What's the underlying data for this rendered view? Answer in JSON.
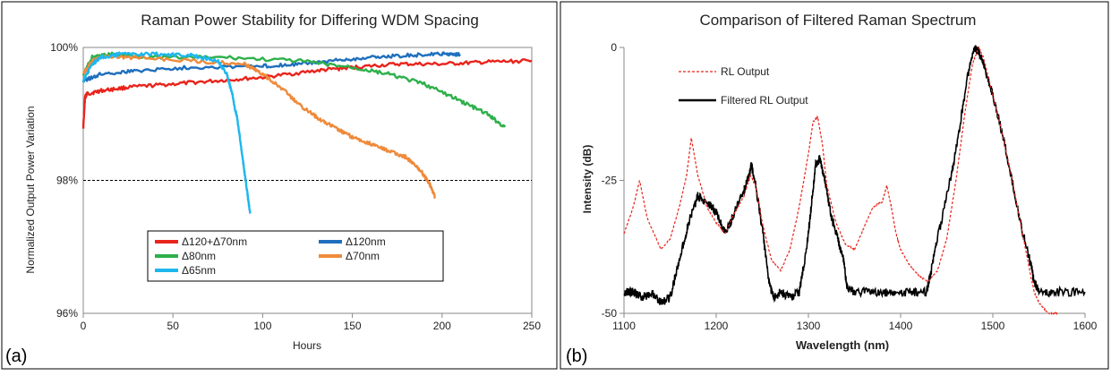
{
  "chart_data": [
    {
      "panel_label": "(a)",
      "type": "line",
      "title": "Raman Power Stability for Differing WDM Spacing",
      "xlabel": "Hours",
      "ylabel": "Normalized Output Power Variation",
      "xlim": [
        0,
        250
      ],
      "ylim": [
        96,
        100
      ],
      "x_ticks": [
        0,
        50,
        100,
        150,
        200,
        250
      ],
      "y_ticks": [
        96,
        98,
        100
      ],
      "y_tick_labels": [
        "96%",
        "98%",
        "100%"
      ],
      "threshold": 98,
      "grid": false,
      "legend_position": "lower-center",
      "series": [
        {
          "name": "Δ120+Δ70nm",
          "color": "#e8241c",
          "x": [
            0,
            1,
            2,
            10,
            25,
            50,
            75,
            100,
            130,
            150,
            175,
            200,
            225,
            250
          ],
          "y": [
            98.8,
            99.25,
            99.3,
            99.35,
            99.4,
            99.45,
            99.5,
            99.55,
            99.65,
            99.7,
            99.75,
            99.75,
            99.78,
            99.8
          ]
        },
        {
          "name": "Δ120nm",
          "color": "#1f6fbd",
          "x": [
            0,
            10,
            30,
            60,
            100,
            120,
            140,
            160,
            180,
            200,
            210
          ],
          "y": [
            99.5,
            99.6,
            99.65,
            99.7,
            99.72,
            99.75,
            99.8,
            99.85,
            99.88,
            99.9,
            99.9
          ]
        },
        {
          "name": "Δ80nm",
          "color": "#2eb04b",
          "x": [
            0,
            5,
            15,
            40,
            80,
            120,
            150,
            170,
            190,
            210,
            225,
            235
          ],
          "y": [
            99.6,
            99.85,
            99.9,
            99.85,
            99.85,
            99.8,
            99.7,
            99.6,
            99.45,
            99.2,
            99.0,
            98.8
          ]
        },
        {
          "name": "Δ70nm",
          "color": "#ef8a3b",
          "x": [
            0,
            5,
            10,
            30,
            60,
            90,
            100,
            110,
            120,
            130,
            140,
            150,
            160,
            170,
            180,
            188,
            193,
            196
          ],
          "y": [
            99.6,
            99.8,
            99.85,
            99.85,
            99.8,
            99.75,
            99.6,
            99.4,
            99.15,
            98.95,
            98.8,
            98.65,
            98.55,
            98.45,
            98.35,
            98.15,
            97.95,
            97.75
          ]
        },
        {
          "name": "Δ65nm",
          "color": "#1fb6ee",
          "x": [
            0,
            5,
            10,
            20,
            40,
            60,
            75,
            80,
            83,
            86,
            89,
            91,
            93
          ],
          "y": [
            99.5,
            99.75,
            99.85,
            99.9,
            99.9,
            99.88,
            99.8,
            99.6,
            99.3,
            98.9,
            98.3,
            97.9,
            97.5
          ]
        }
      ]
    },
    {
      "panel_label": "(b)",
      "type": "line",
      "title": "Comparison of Filtered Raman Spectrum",
      "xlabel": "Wavelength (nm)",
      "ylabel": "Intensity (dB)",
      "xlim": [
        1100,
        1600
      ],
      "ylim": [
        -50,
        0
      ],
      "x_ticks": [
        1100,
        1200,
        1300,
        1400,
        1500,
        1600
      ],
      "y_ticks": [
        -50,
        -25,
        0
      ],
      "grid": false,
      "legend_position": "upper-left",
      "series": [
        {
          "name": "RL Output",
          "color": "#e8241c",
          "dash": true,
          "x": [
            1100,
            1110,
            1117,
            1125,
            1140,
            1150,
            1160,
            1168,
            1173,
            1180,
            1190,
            1200,
            1210,
            1220,
            1230,
            1237,
            1243,
            1250,
            1260,
            1270,
            1280,
            1290,
            1300,
            1305,
            1310,
            1315,
            1320,
            1330,
            1340,
            1350,
            1360,
            1370,
            1380,
            1385,
            1390,
            1395,
            1400,
            1410,
            1420,
            1430,
            1440,
            1450,
            1460,
            1470,
            1478,
            1485,
            1490,
            1500,
            1510,
            1520,
            1530,
            1540,
            1545,
            1550,
            1560,
            1570
          ],
          "y": [
            -35,
            -30,
            -25,
            -32,
            -38,
            -36,
            -30,
            -24,
            -17,
            -24,
            -30,
            -33,
            -35,
            -31,
            -28,
            -24,
            -26,
            -33,
            -40,
            -42,
            -38,
            -30,
            -20,
            -14,
            -13,
            -18,
            -26,
            -33,
            -37,
            -38,
            -34,
            -30,
            -29,
            -26,
            -30,
            -35,
            -38,
            -41,
            -43,
            -44,
            -42,
            -36,
            -25,
            -12,
            -3,
            0,
            -2,
            -9,
            -16,
            -24,
            -33,
            -42,
            -46,
            -48,
            -50,
            -50
          ]
        },
        {
          "name": "Filtered RL Output",
          "color": "#000000",
          "dash": false,
          "x": [
            1100,
            1110,
            1120,
            1130,
            1140,
            1150,
            1160,
            1170,
            1180,
            1190,
            1200,
            1210,
            1220,
            1230,
            1236,
            1238,
            1242,
            1250,
            1257,
            1262,
            1270,
            1280,
            1290,
            1298,
            1303,
            1308,
            1312,
            1318,
            1325,
            1332,
            1338,
            1342,
            1350,
            1370,
            1390,
            1410,
            1428,
            1432,
            1440,
            1455,
            1465,
            1472,
            1480,
            1485,
            1490,
            1500,
            1510,
            1520,
            1530,
            1540,
            1545,
            1550,
            1570,
            1600
          ],
          "y": [
            -46,
            -46,
            -47,
            -46,
            -48,
            -47,
            -40,
            -33,
            -28,
            -29,
            -31,
            -35,
            -31,
            -27,
            -24,
            -22,
            -25,
            -34,
            -44,
            -47,
            -46,
            -47,
            -46,
            -38,
            -30,
            -22,
            -21,
            -25,
            -32,
            -36,
            -40,
            -45,
            -46,
            -46,
            -46,
            -46,
            -46,
            -43,
            -36,
            -24,
            -14,
            -6,
            0,
            -1,
            -3,
            -9,
            -16,
            -24,
            -33,
            -40,
            -44,
            -46,
            -46,
            -46
          ]
        }
      ]
    }
  ]
}
